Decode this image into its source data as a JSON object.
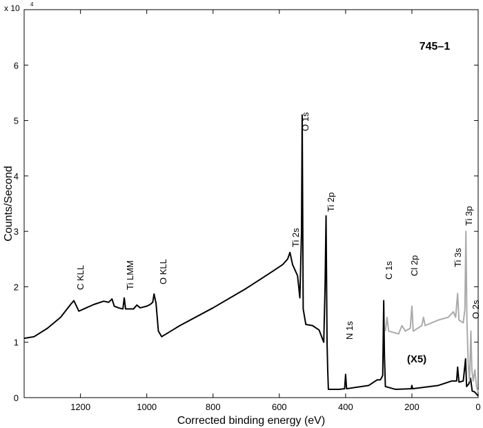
{
  "chart_data": {
    "type": "line",
    "multiplier": "x 10",
    "multiplier_exponent": "4",
    "sample_label": "745–1",
    "xlabel": "Corrected binding energy (eV)",
    "ylabel": "Counts/Second",
    "xlim": [
      1370,
      0
    ],
    "xticks": [
      1200,
      1000,
      800,
      600,
      400,
      200,
      0
    ],
    "ylim": [
      0,
      7
    ],
    "yticks": [
      0,
      1,
      2,
      3,
      4,
      5,
      6
    ],
    "grid": false,
    "series": [
      {
        "color": "#000000",
        "x": [
          1370,
          1340,
          1300,
          1260,
          1230,
          1220,
          1212,
          1205,
          1190,
          1160,
          1130,
          1115,
          1105,
          1098,
          1085,
          1072,
          1068,
          1064,
          1040,
          1030,
          1020,
          1000,
          990,
          982,
          978,
          972,
          965,
          955,
          900,
          800,
          700,
          620,
          590,
          575,
          568,
          560,
          545,
          538,
          533,
          531,
          528,
          520,
          500,
          480,
          466,
          462,
          459,
          456,
          454,
          452,
          420,
          403,
          400,
          397,
          330,
          305,
          295,
          288,
          285,
          283,
          280,
          250,
          202,
          200,
          198,
          120,
          80,
          65,
          62,
          58,
          45,
          38,
          35,
          28,
          23,
          18,
          10,
          0
        ],
        "values": [
          1.07,
          1.1,
          1.25,
          1.45,
          1.68,
          1.75,
          1.65,
          1.56,
          1.6,
          1.68,
          1.74,
          1.72,
          1.78,
          1.65,
          1.62,
          1.6,
          1.8,
          1.6,
          1.6,
          1.67,
          1.62,
          1.65,
          1.68,
          1.72,
          1.87,
          1.7,
          1.2,
          1.1,
          1.3,
          1.62,
          1.97,
          2.28,
          2.4,
          2.5,
          2.62,
          2.4,
          2.2,
          1.8,
          3.0,
          5.1,
          1.6,
          1.32,
          1.3,
          1.22,
          1.0,
          2.0,
          3.28,
          1.0,
          0.5,
          0.15,
          0.15,
          0.16,
          0.42,
          0.16,
          0.22,
          0.32,
          0.32,
          0.4,
          1.75,
          0.8,
          0.2,
          0.15,
          0.16,
          0.22,
          0.16,
          0.22,
          0.3,
          0.3,
          0.55,
          0.28,
          0.3,
          0.7,
          0.2,
          0.25,
          0.35,
          0.12,
          0.1,
          0.03
        ]
      },
      {
        "color": "#aaaaaa",
        "x": [
          280,
          275,
          270,
          240,
          230,
          220,
          205,
          200,
          196,
          170,
          165,
          160,
          120,
          90,
          75,
          68,
          62,
          58,
          45,
          40,
          37,
          34,
          30,
          26,
          22,
          19,
          15,
          10,
          5,
          0
        ],
        "values": [
          1.2,
          1.45,
          1.2,
          1.15,
          1.3,
          1.2,
          1.25,
          1.65,
          1.2,
          1.3,
          1.45,
          1.3,
          1.4,
          1.45,
          1.55,
          1.45,
          1.88,
          1.4,
          1.35,
          1.6,
          3.0,
          1.4,
          0.6,
          0.3,
          1.2,
          0.5,
          0.3,
          0.5,
          0.2,
          0.1
        ]
      }
    ],
    "annotations": [
      "C KLL",
      "Ti LMM",
      "O KLL",
      "Ti 2s",
      "O 1s",
      "Ti 2p",
      "N 1s",
      "C 1s",
      "Cl 2p",
      "Ti 3s",
      "Ti 3p",
      "O 2s",
      "(X5)"
    ]
  }
}
